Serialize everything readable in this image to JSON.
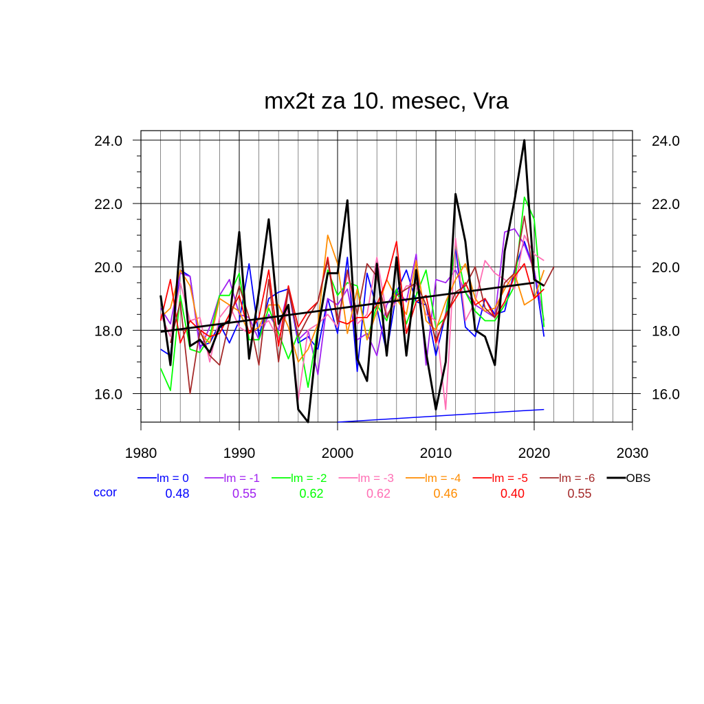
{
  "chart_data": {
    "type": "line",
    "title": "mx2t za 10. mesec, Vra",
    "xlim": [
      1980,
      2030
    ],
    "ylim": [
      15.1,
      24.3
    ],
    "x_ticks": [
      "1980",
      "1990",
      "2000",
      "2010",
      "2020",
      "2030"
    ],
    "y_ticks": [
      "16.0",
      "18.0",
      "20.0",
      "22.0",
      "24.0"
    ],
    "grid": true,
    "x": [
      1982,
      1983,
      1984,
      1985,
      1986,
      1987,
      1988,
      1989,
      1990,
      1991,
      1992,
      1993,
      1994,
      1995,
      1996,
      1997,
      1998,
      1999,
      2000,
      2001,
      2002,
      2003,
      2004,
      2005,
      2006,
      2007,
      2008,
      2009,
      2010,
      2011,
      2012,
      2013,
      2014,
      2015,
      2016,
      2017,
      2018,
      2019,
      2020,
      2021
    ],
    "series": [
      {
        "name": "lm = 0",
        "color": "#0000ff",
        "x_start": 1982,
        "values": [
          17.4,
          17.2,
          19.9,
          19.7,
          17.5,
          17.6,
          18.2,
          17.6,
          18.3,
          20.1,
          17.8,
          19.0,
          19.2,
          19.3,
          17.6,
          17.8,
          17.4,
          19.0,
          17.9,
          20.3,
          16.7,
          19.8,
          18.7,
          17.3,
          19.2,
          19.9,
          18.9,
          18.8,
          17.2,
          18.5,
          20.6,
          18.1,
          17.8,
          19.0,
          18.5,
          18.6,
          19.9,
          20.8,
          19.9,
          17.8
        ]
      },
      {
        "name": "lm = -1",
        "color": "#a020f0",
        "x_start": 1982,
        "values": [
          18.7,
          18.2,
          19.8,
          19.7,
          17.4,
          18.1,
          19.1,
          19.6,
          18.5,
          18.4,
          17.7,
          18.5,
          18.0,
          19.3,
          17.7,
          18.0,
          16.6,
          19.0,
          18.8,
          19.3,
          17.7,
          17.9,
          17.2,
          18.8,
          19.3,
          18.9,
          20.4,
          16.9,
          19.6,
          19.5,
          19.9,
          19.2,
          18.8,
          18.6,
          18.4,
          21.1,
          21.2,
          20.7,
          19.9,
          18.3
        ]
      },
      {
        "name": "lm = -2",
        "color": "#00ff00",
        "x_start": 1982,
        "values": [
          16.8,
          16.1,
          19.1,
          17.4,
          17.3,
          17.8,
          19.1,
          19.1,
          19.8,
          17.7,
          17.7,
          18.7,
          17.9,
          17.1,
          17.9,
          16.2,
          18.1,
          19.9,
          19.1,
          19.5,
          19.4,
          17.7,
          18.8,
          18.3,
          19.3,
          18.2,
          19.1,
          19.9,
          18.1,
          18.4,
          20.7,
          19.2,
          18.6,
          18.3,
          18.3,
          18.8,
          19.4,
          22.2,
          21.5,
          18.1
        ]
      },
      {
        "name": "lm = -3",
        "color": "#ff6eb4",
        "x_start": 1982,
        "values": [
          18.5,
          17.8,
          19.5,
          18.3,
          18.4,
          17.0,
          18.4,
          18.8,
          18.1,
          17.9,
          18.1,
          18.3,
          17.7,
          18.7,
          15.8,
          18.0,
          18.2,
          18.5,
          18.1,
          19.8,
          18.2,
          18.5,
          20.3,
          18.5,
          18.9,
          19.4,
          19.4,
          18.5,
          18.3,
          15.5,
          20.9,
          18.3,
          18.9,
          20.2,
          19.8,
          19.6,
          19.3,
          21.0,
          20.4,
          20.2
        ]
      },
      {
        "name": "lm = -4",
        "color": "#ff8c00",
        "x_start": 1982,
        "values": [
          18.4,
          18.7,
          19.9,
          19.4,
          17.9,
          17.6,
          19.0,
          18.8,
          18.6,
          17.9,
          18.1,
          18.8,
          18.8,
          18.1,
          17.0,
          17.4,
          18.2,
          21.0,
          20.1,
          17.9,
          19.3,
          17.7,
          18.6,
          19.6,
          19.0,
          18.5,
          20.2,
          18.3,
          18.0,
          18.9,
          19.6,
          20.1,
          19.0,
          18.6,
          18.7,
          19.3,
          19.8,
          18.8,
          19.0,
          19.9
        ]
      },
      {
        "name": "lm = -5",
        "color": "#ff0000",
        "x_start": 1982,
        "values": [
          18.3,
          19.6,
          17.6,
          18.3,
          18.0,
          17.8,
          17.9,
          18.5,
          19.1,
          17.9,
          18.4,
          19.9,
          17.5,
          19.4,
          18.1,
          18.6,
          18.9,
          20.3,
          18.3,
          18.2,
          18.4,
          18.4,
          18.8,
          19.6,
          20.8,
          17.9,
          18.9,
          19.1,
          17.6,
          18.5,
          19.0,
          19.5,
          18.8,
          19.0,
          18.4,
          18.9,
          19.7,
          20.1,
          19.0,
          19.3
        ]
      },
      {
        "name": "lm = -6",
        "color": "#a52a2a",
        "x_start": 1983,
        "values": [
          17.6,
          18.9,
          16.0,
          18.0,
          17.2,
          16.9,
          18.3,
          19.4,
          18.4,
          16.9,
          19.6,
          17.0,
          19.3,
          17.8,
          18.4,
          18.9,
          20.2,
          18.2,
          19.9,
          18.5,
          20.1,
          19.7,
          18.4,
          19.1,
          19.3,
          19.5,
          18.8,
          17.7,
          18.4,
          19.2,
          19.4,
          20.0,
          18.7,
          18.4,
          19.5,
          19.8,
          21.6,
          19.6,
          19.4,
          20.0
        ]
      },
      {
        "name": "OBS",
        "color": "#000000",
        "x_start": 1982,
        "values": [
          19.1,
          16.9,
          20.8,
          17.5,
          17.7,
          17.3,
          18.1,
          18.3,
          21.1,
          17.1,
          19.2,
          21.5,
          18.2,
          18.8,
          15.5,
          15.1,
          18.0,
          19.8,
          19.8,
          22.1,
          17.1,
          16.4,
          20.1,
          17.2,
          20.3,
          17.2,
          19.9,
          17.3,
          15.5,
          17.0,
          22.3,
          20.8,
          18.0,
          17.8,
          16.9,
          20.5,
          22.1,
          24.0,
          19.6,
          19.4
        ]
      }
    ],
    "trend": {
      "x": [
        1982,
        2020
      ],
      "y": [
        17.95,
        19.5
      ]
    },
    "ccor": {
      "label": "ccor",
      "values": [
        "0.48",
        "0.55",
        "0.62",
        "0.62",
        "0.46",
        "0.40",
        "0.55"
      ]
    }
  }
}
